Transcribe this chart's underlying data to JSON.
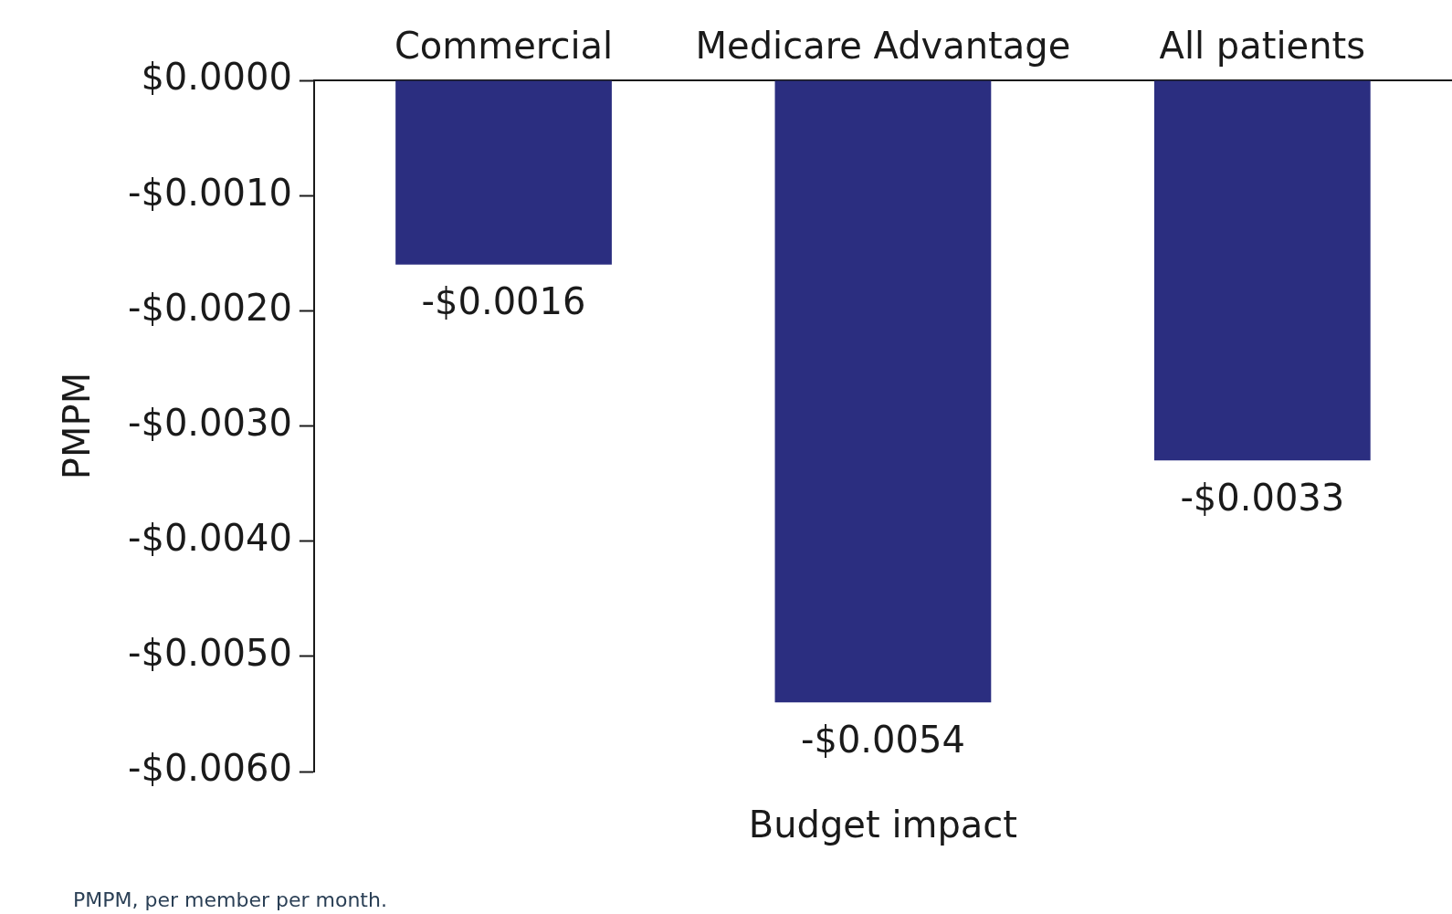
{
  "chart_data": {
    "type": "bar",
    "xlabel": "Budget impact",
    "ylabel": "PMPM",
    "categories": [
      "Commercial",
      "Medicare Advantage",
      "All patients"
    ],
    "values": [
      -0.0016,
      -0.0054,
      -0.0033
    ],
    "value_labels": [
      "-$0.0016",
      "-$0.0054",
      "-$0.0033"
    ],
    "color": "#2b2e80",
    "ylim": [
      -0.006,
      0
    ],
    "yticks": [
      {
        "value": 0,
        "label": "$0.0000"
      },
      {
        "value": -0.001,
        "label": "-$0.0010"
      },
      {
        "value": -0.002,
        "label": "-$0.0020"
      },
      {
        "value": -0.003,
        "label": "-$0.0030"
      },
      {
        "value": -0.004,
        "label": "-$0.0040"
      },
      {
        "value": -0.005,
        "label": "-$0.0050"
      },
      {
        "value": -0.006,
        "label": "-$0.0060"
      }
    ],
    "grid": false,
    "legend": false,
    "annotations": [
      "PMPM, per member per month."
    ]
  }
}
